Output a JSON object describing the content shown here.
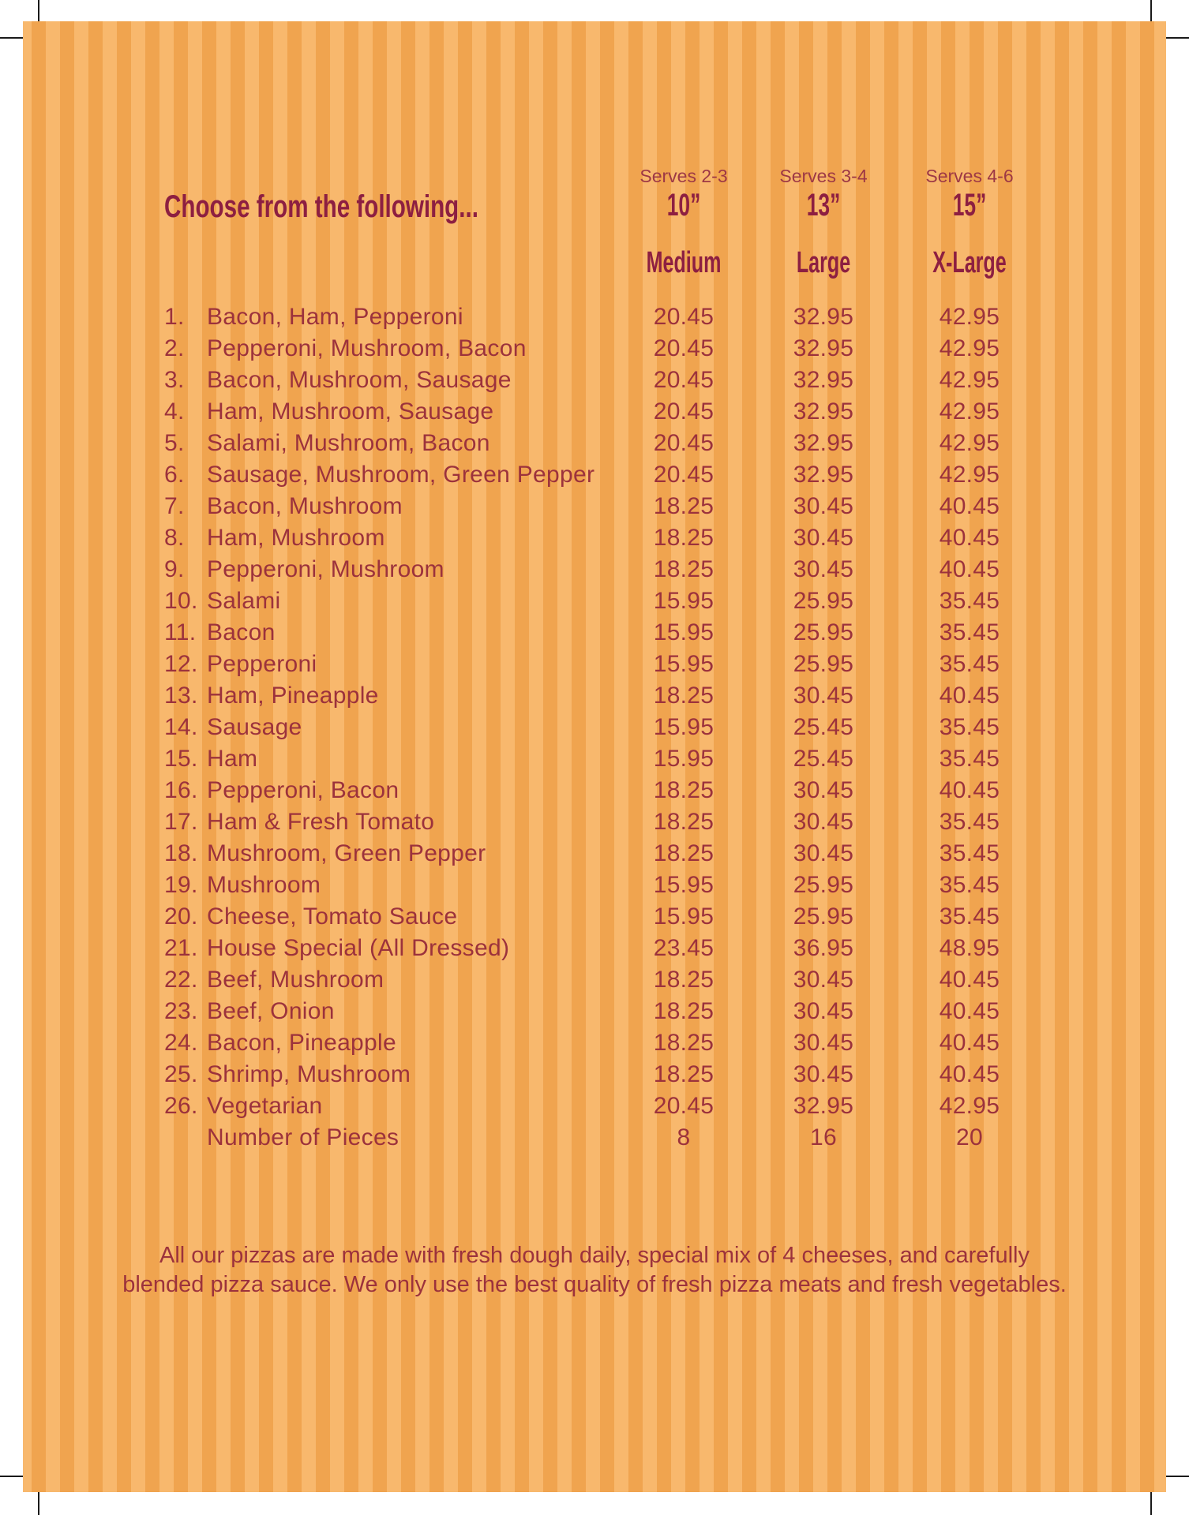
{
  "menu": {
    "heading": "Choose from the following...",
    "size_columns": [
      {
        "serves": "Serves 2-3",
        "size": "10”",
        "label": "Medium"
      },
      {
        "serves": "Serves 3-4",
        "size": "13”",
        "label": "Large"
      },
      {
        "serves": "Serves 4-6",
        "size": "15”",
        "label": "X-Large"
      }
    ],
    "items": [
      {
        "num": "1.",
        "name": "Bacon, Ham, Pepperoni",
        "medium": "20.45",
        "large": "32.95",
        "xlarge": "42.95"
      },
      {
        "num": "2.",
        "name": "Pepperoni, Mushroom, Bacon",
        "medium": "20.45",
        "large": "32.95",
        "xlarge": "42.95"
      },
      {
        "num": "3.",
        "name": "Bacon, Mushroom, Sausage",
        "medium": "20.45",
        "large": "32.95",
        "xlarge": "42.95"
      },
      {
        "num": "4.",
        "name": "Ham, Mushroom, Sausage",
        "medium": "20.45",
        "large": "32.95",
        "xlarge": "42.95"
      },
      {
        "num": "5.",
        "name": "Salami, Mushroom, Bacon",
        "medium": "20.45",
        "large": "32.95",
        "xlarge": "42.95"
      },
      {
        "num": "6.",
        "name": "Sausage, Mushroom, Green Pepper",
        "medium": "20.45",
        "large": "32.95",
        "xlarge": "42.95"
      },
      {
        "num": "7.",
        "name": "Bacon, Mushroom",
        "medium": "18.25",
        "large": "30.45",
        "xlarge": "40.45"
      },
      {
        "num": "8.",
        "name": "Ham, Mushroom",
        "medium": "18.25",
        "large": "30.45",
        "xlarge": "40.45"
      },
      {
        "num": "9.",
        "name": "Pepperoni, Mushroom",
        "medium": "18.25",
        "large": "30.45",
        "xlarge": "40.45"
      },
      {
        "num": "10.",
        "name": "Salami",
        "medium": "15.95",
        "large": "25.95",
        "xlarge": "35.45"
      },
      {
        "num": "11.",
        "name": "Bacon",
        "medium": "15.95",
        "large": "25.95",
        "xlarge": "35.45"
      },
      {
        "num": "12.",
        "name": "Pepperoni",
        "medium": "15.95",
        "large": "25.95",
        "xlarge": "35.45"
      },
      {
        "num": "13.",
        "name": "Ham, Pineapple",
        "medium": "18.25",
        "large": "30.45",
        "xlarge": "40.45"
      },
      {
        "num": "14.",
        "name": "Sausage",
        "medium": "15.95",
        "large": "25.45",
        "xlarge": "35.45"
      },
      {
        "num": "15.",
        "name": "Ham",
        "medium": "15.95",
        "large": "25.45",
        "xlarge": "35.45"
      },
      {
        "num": "16.",
        "name": "Pepperoni, Bacon",
        "medium": "18.25",
        "large": "30.45",
        "xlarge": "40.45"
      },
      {
        "num": "17.",
        "name": "Ham & Fresh Tomato",
        "medium": "18.25",
        "large": "30.45",
        "xlarge": "35.45"
      },
      {
        "num": "18.",
        "name": "Mushroom, Green Pepper",
        "medium": "18.25",
        "large": "30.45",
        "xlarge": "35.45"
      },
      {
        "num": "19.",
        "name": "Mushroom",
        "medium": "15.95",
        "large": "25.95",
        "xlarge": "35.45"
      },
      {
        "num": "20.",
        "name": "Cheese, Tomato Sauce",
        "medium": "15.95",
        "large": "25.95",
        "xlarge": "35.45"
      },
      {
        "num": "21.",
        "name": "House Special (All Dressed)",
        "medium": "23.45",
        "large": "36.95",
        "xlarge": "48.95"
      },
      {
        "num": "22.",
        "name": "Beef, Mushroom",
        "medium": "18.25",
        "large": "30.45",
        "xlarge": "40.45"
      },
      {
        "num": "23.",
        "name": "Beef, Onion",
        "medium": "18.25",
        "large": "30.45",
        "xlarge": "40.45"
      },
      {
        "num": "24.",
        "name": "Bacon, Pineapple",
        "medium": "18.25",
        "large": "30.45",
        "xlarge": "40.45"
      },
      {
        "num": "25.",
        "name": "Shrimp, Mushroom",
        "medium": "18.25",
        "large": "30.45",
        "xlarge": "40.45"
      },
      {
        "num": "26.",
        "name": "Vegetarian",
        "medium": "20.45",
        "large": "32.95",
        "xlarge": "42.95"
      }
    ],
    "pieces_row": {
      "num": "",
      "name": "Number of Pieces",
      "medium": "8",
      "large": "16",
      "xlarge": "20"
    },
    "footer_lines": [
      "All our pizzas are made with fresh dough daily, special mix of 4 cheeses, and carefully",
      "blended pizza sauce. We only use the best quality of fresh pizza meats and fresh vegetables."
    ],
    "colors": {
      "stripe_light": "#f8b86d",
      "stripe_dark": "#f0a44f",
      "body_text": "#9c323c",
      "heading_text": "#8d1f41",
      "serves_text": "#9d3845",
      "crop_mark": "#1a1a1a"
    }
  }
}
